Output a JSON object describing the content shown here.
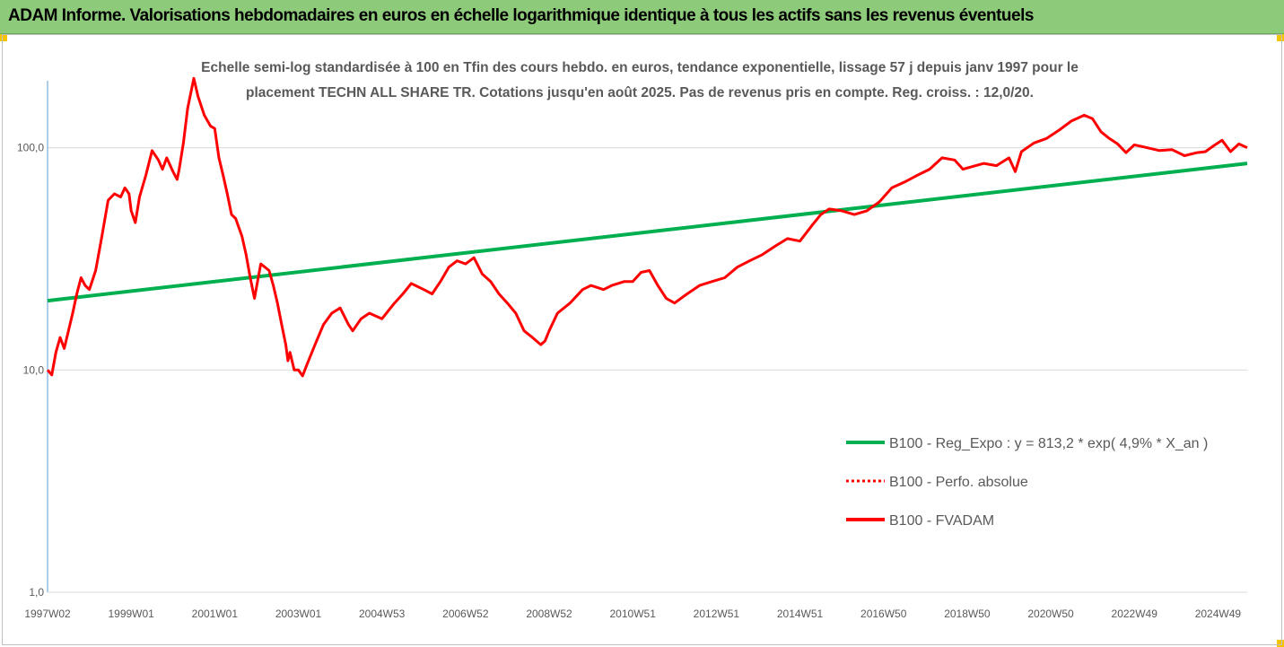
{
  "header": {
    "title": "ADAM Informe. Valorisations hebdomadaires en euros en échelle logarithmique identique à tous les actifs sans les revenus éventuels"
  },
  "colors": {
    "header_bg": "#8dca7a",
    "trend": "#00b050",
    "series": "#ff0000",
    "grid": "#d9d9d9",
    "text": "#595959",
    "corner_accent": "#f5c400"
  },
  "chart_data": {
    "type": "line",
    "title": "",
    "subtitle_lines": [
      "Echelle semi-log standardisée à 100 en Tfin des cours hebdo. en euros, tendance exponentielle, lissage 57 j depuis janv 1997 pour le",
      "placement TECHN ALL SHARE TR. Cotations jusqu'en août 2025. Pas de revenus pris en compte. Reg.  croiss. : 12,0/20."
    ],
    "y_scale": "log",
    "ylim": [
      1,
      200
    ],
    "y_ticks": [
      1,
      10,
      100
    ],
    "y_tick_labels": [
      "1,0",
      "10,0",
      "100,0"
    ],
    "x_range": [
      1997.0,
      2025.7
    ],
    "x_ticks": [
      {
        "x": 1997.0,
        "label": "1997W02"
      },
      {
        "x": 1999.0,
        "label": "1999W01"
      },
      {
        "x": 2001.0,
        "label": "2001W01"
      },
      {
        "x": 2003.0,
        "label": "2003W01"
      },
      {
        "x": 2005.0,
        "label": "2004W53"
      },
      {
        "x": 2007.0,
        "label": "2006W52"
      },
      {
        "x": 2009.0,
        "label": "2008W52"
      },
      {
        "x": 2011.0,
        "label": "2010W51"
      },
      {
        "x": 2013.0,
        "label": "2012W51"
      },
      {
        "x": 2015.0,
        "label": "2014W51"
      },
      {
        "x": 2017.0,
        "label": "2016W50"
      },
      {
        "x": 2019.0,
        "label": "2018W50"
      },
      {
        "x": 2021.0,
        "label": "2020W50"
      },
      {
        "x": 2023.0,
        "label": "2022W49"
      },
      {
        "x": 2025.0,
        "label": "2024W49"
      }
    ],
    "grid": "horizontal",
    "legend_position": "bottom-right",
    "legend": [
      {
        "label": "B100 - Reg_Expo : y = 813,2 * exp( 4,9% *  X_an )",
        "color": "#00b050",
        "style": "solid"
      },
      {
        "label": "B100 - Perfo. absolue",
        "color": "#ff0000",
        "style": "dotted"
      },
      {
        "label": "B100 - FVADAM",
        "color": "#ff0000",
        "style": "solid"
      }
    ],
    "series": [
      {
        "name": "B100 - Reg_Expo : y = 813,2 * exp( 4,9% *  X_an )",
        "color": "#00b050",
        "x": [
          1997.0,
          2025.7
        ],
        "y": [
          20.5,
          85
        ]
      },
      {
        "name": "B100 - FVADAM",
        "color": "#ff0000",
        "x": [
          1997.0,
          1997.1,
          1997.2,
          1997.3,
          1997.4,
          1997.5,
          1997.6,
          1997.7,
          1997.8,
          1997.9,
          1998.0,
          1998.15,
          1998.3,
          1998.45,
          1998.6,
          1998.75,
          1998.85,
          1998.95,
          1999.0,
          1999.1,
          1999.2,
          1999.35,
          1999.5,
          1999.65,
          1999.75,
          1999.85,
          2000.0,
          2000.1,
          2000.15,
          2000.25,
          2000.35,
          2000.5,
          2000.6,
          2000.75,
          2000.9,
          2001.0,
          2001.1,
          2001.2,
          2001.3,
          2001.4,
          2001.5,
          2001.65,
          2001.75,
          2001.85,
          2001.95,
          2002.1,
          2002.2,
          2002.3,
          2002.4,
          2002.5,
          2002.6,
          2002.7,
          2002.75,
          2002.8,
          2002.9,
          2003.0,
          2003.1,
          2003.2,
          2003.4,
          2003.6,
          2003.8,
          2004.0,
          2004.2,
          2004.3,
          2004.5,
          2004.7,
          2005.0,
          2005.3,
          2005.5,
          2005.7,
          2006.0,
          2006.2,
          2006.4,
          2006.6,
          2006.8,
          2007.0,
          2007.2,
          2007.4,
          2007.6,
          2007.8,
          2008.0,
          2008.2,
          2008.4,
          2008.6,
          2008.8,
          2008.9,
          2009.0,
          2009.2,
          2009.5,
          2009.8,
          2010.0,
          2010.3,
          2010.5,
          2010.8,
          2011.0,
          2011.2,
          2011.4,
          2011.6,
          2011.8,
          2012.0,
          2012.3,
          2012.6,
          2012.9,
          2013.2,
          2013.5,
          2013.8,
          2014.1,
          2014.4,
          2014.7,
          2015.0,
          2015.3,
          2015.5,
          2015.7,
          2016.0,
          2016.3,
          2016.6,
          2016.9,
          2017.2,
          2017.5,
          2017.8,
          2018.1,
          2018.4,
          2018.7,
          2018.9,
          2019.1,
          2019.4,
          2019.7,
          2020.0,
          2020.15,
          2020.3,
          2020.6,
          2020.9,
          2021.2,
          2021.5,
          2021.8,
          2022.0,
          2022.2,
          2022.4,
          2022.6,
          2022.8,
          2023.0,
          2023.3,
          2023.6,
          2023.9,
          2024.2,
          2024.5,
          2024.7,
          2024.9,
          2025.1,
          2025.3,
          2025.5,
          2025.7
        ],
        "y": [
          10.0,
          9.5,
          12.0,
          14.0,
          12.5,
          15.0,
          18.0,
          22.0,
          26.0,
          24.0,
          23.0,
          28.0,
          40.0,
          58.0,
          62.0,
          60.0,
          66.0,
          62.0,
          52.0,
          46.0,
          60.0,
          75.0,
          97.0,
          88.0,
          80.0,
          90.0,
          78.0,
          72.0,
          80.0,
          105.0,
          150.0,
          205.0,
          170.0,
          140.0,
          125.0,
          122.0,
          90.0,
          75.0,
          62.0,
          50.0,
          48.0,
          40.0,
          33.0,
          26.0,
          21.0,
          30.0,
          29.0,
          28.0,
          24.0,
          20.0,
          16.0,
          13.0,
          11.0,
          12.0,
          10.0,
          10.0,
          9.4,
          10.5,
          13.0,
          16.0,
          18.0,
          19.0,
          16.0,
          15.0,
          17.0,
          18.0,
          17.0,
          20.0,
          22.0,
          24.5,
          23.0,
          22.0,
          25.0,
          29.0,
          31.0,
          30.0,
          32.0,
          27.0,
          25.0,
          22.0,
          20.0,
          18.0,
          15.0,
          14.0,
          13.0,
          13.5,
          15.0,
          18.0,
          20.0,
          23.0,
          24.0,
          23.0,
          24.0,
          25.0,
          25.0,
          27.5,
          28.0,
          24.0,
          21.0,
          20.0,
          22.0,
          24.0,
          25.0,
          26.0,
          29.0,
          31.0,
          33.0,
          36.0,
          39.0,
          38.0,
          45.0,
          50.0,
          53.0,
          52.0,
          50.0,
          52.0,
          57.0,
          66.0,
          70.0,
          75.0,
          80.0,
          90.0,
          88.0,
          80.0,
          82.0,
          85.0,
          83.0,
          90.0,
          78.0,
          96.0,
          105.0,
          110.0,
          120.0,
          132.0,
          140.0,
          135.0,
          118.0,
          110.0,
          104.0,
          95.0,
          103.0,
          100.0,
          97.0,
          98.0,
          92.0,
          95.0,
          96.0,
          102.0,
          108.0,
          96.0,
          104.0,
          100.0
        ]
      }
    ]
  }
}
